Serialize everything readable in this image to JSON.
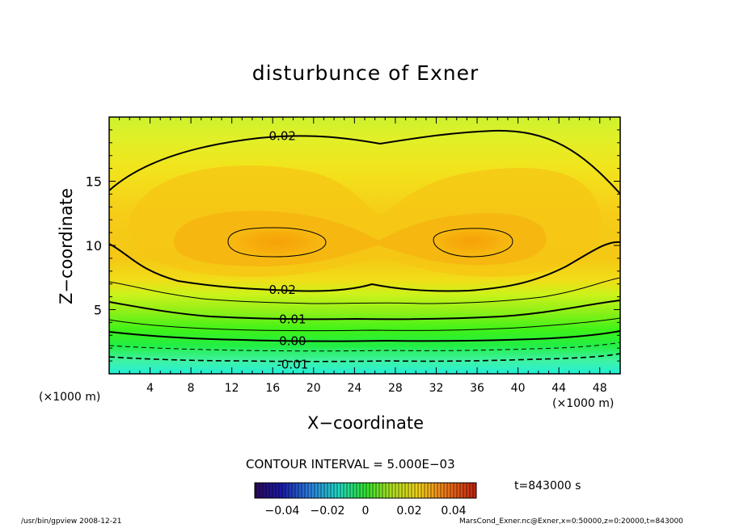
{
  "chart_data": {
    "type": "contour",
    "title": "disturbunce of Exner",
    "xlabel": "X−coordinate",
    "ylabel": "Z−coordinate",
    "x_unit_left": "(×1000 m)",
    "x_unit_right": "(×1000 m)",
    "xlim": [
      0,
      50
    ],
    "ylim": [
      0,
      20
    ],
    "x_ticks": [
      4,
      8,
      12,
      16,
      20,
      24,
      28,
      32,
      36,
      40,
      44,
      48
    ],
    "y_ticks": [
      5,
      10,
      15
    ],
    "contour_interval_text": "CONTOUR INTERVAL = 5.000E−03",
    "contour_interval": 0.005,
    "contour_labels": [
      {
        "text": "0.02",
        "x": 16,
        "z": 18.6
      },
      {
        "text": "0.02",
        "x": 16,
        "z": 6.6
      },
      {
        "text": "0.01",
        "x": 17,
        "z": 4.3
      },
      {
        "text": "0.00",
        "x": 17,
        "z": 2.6
      },
      {
        "text": "-0.01",
        "x": 17,
        "z": 0.8
      }
    ],
    "colorbar": {
      "range": [
        -0.05,
        0.05
      ],
      "tick_labels": [
        "−0.04",
        "−0.02",
        "0",
        "0.02",
        "0.04"
      ]
    },
    "time_text": "t=843000 s",
    "grid": false
  },
  "footer": {
    "left": "/usr/bin/gpview   2008-12-21",
    "right": "MarsCond_Exner.nc@Exner,x=0:50000,z=0:20000,t=843000"
  }
}
